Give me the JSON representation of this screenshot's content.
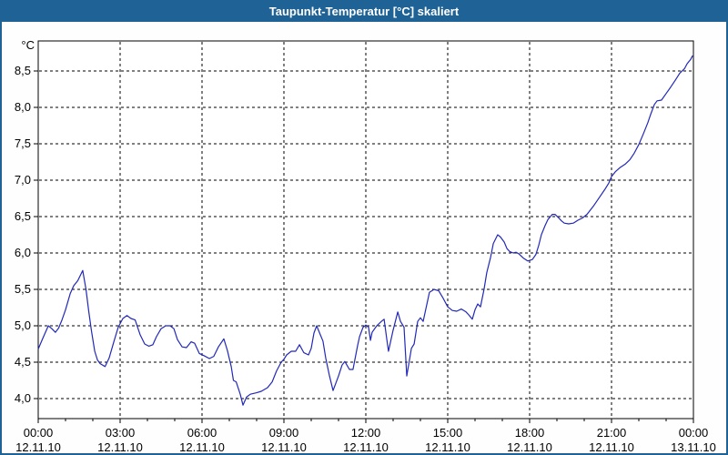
{
  "window": {
    "title": "Taupunkt-Temperatur [°C] skaliert"
  },
  "colors": {
    "titlebar_bg": "#1F6295",
    "titlebar_text": "#FFFFFF",
    "frame_border": "#1F6295",
    "page_bg": "#FDFEFD",
    "plot_bg": "#FFFFFF",
    "grid": "#000000",
    "axis": "#000000",
    "label_text": "#000000",
    "line": "#2228B8"
  },
  "chart_data": {
    "type": "line",
    "title": "Taupunkt-Temperatur [°C] skaliert",
    "grid": "dashed",
    "legend_position": "none",
    "y_axis": {
      "unit_label": "°C",
      "min": 4.0,
      "max": 8.5,
      "step": 0.5,
      "tick_labels": [
        "4,0",
        "4,5",
        "5,0",
        "5,5",
        "6,0",
        "6,5",
        "7,0",
        "7,5",
        "8,0",
        "8,5"
      ]
    },
    "x_axis": {
      "hours_span": 24,
      "major_step_hours": 3,
      "minor_step_hours": 1,
      "ticks": [
        {
          "hour": 0,
          "time": "00:00",
          "date": "12.11.10"
        },
        {
          "hour": 3,
          "time": "03:00",
          "date": "12.11.10"
        },
        {
          "hour": 6,
          "time": "06:00",
          "date": "12.11.10"
        },
        {
          "hour": 9,
          "time": "09:00",
          "date": "12.11.10"
        },
        {
          "hour": 12,
          "time": "12:00",
          "date": "12.11.10"
        },
        {
          "hour": 15,
          "time": "15:00",
          "date": "12.11.10"
        },
        {
          "hour": 18,
          "time": "18:00",
          "date": "12.11.10"
        },
        {
          "hour": 21,
          "time": "21:00",
          "date": "12.11.10"
        },
        {
          "hour": 24,
          "time": "00:00",
          "date": "13.11.10"
        }
      ]
    },
    "series": [
      {
        "name": "Taupunkt-Temperatur",
        "color": "#2228B8",
        "points": [
          [
            0,
            4.68
          ],
          [
            0.17,
            4.83
          ],
          [
            0.37,
            5.0
          ],
          [
            0.5,
            4.96
          ],
          [
            0.63,
            4.91
          ],
          [
            0.75,
            4.97
          ],
          [
            0.87,
            5.08
          ],
          [
            1.0,
            5.22
          ],
          [
            1.17,
            5.44
          ],
          [
            1.3,
            5.55
          ],
          [
            1.45,
            5.62
          ],
          [
            1.63,
            5.76
          ],
          [
            1.75,
            5.5
          ],
          [
            1.85,
            5.2
          ],
          [
            1.95,
            4.93
          ],
          [
            2.07,
            4.65
          ],
          [
            2.17,
            4.53
          ],
          [
            2.27,
            4.48
          ],
          [
            2.45,
            4.44
          ],
          [
            2.6,
            4.56
          ],
          [
            2.77,
            4.78
          ],
          [
            2.93,
            4.98
          ],
          [
            3.1,
            5.1
          ],
          [
            3.25,
            5.14
          ],
          [
            3.4,
            5.1
          ],
          [
            3.55,
            5.08
          ],
          [
            3.73,
            4.88
          ],
          [
            3.9,
            4.75
          ],
          [
            4.05,
            4.72
          ],
          [
            4.2,
            4.74
          ],
          [
            4.33,
            4.85
          ],
          [
            4.5,
            4.96
          ],
          [
            4.67,
            5.0
          ],
          [
            4.83,
            5.0
          ],
          [
            4.97,
            4.96
          ],
          [
            5.1,
            4.81
          ],
          [
            5.27,
            4.71
          ],
          [
            5.43,
            4.7
          ],
          [
            5.6,
            4.78
          ],
          [
            5.73,
            4.76
          ],
          [
            5.9,
            4.62
          ],
          [
            6.07,
            4.59
          ],
          [
            6.27,
            4.55
          ],
          [
            6.43,
            4.58
          ],
          [
            6.6,
            4.71
          ],
          [
            6.8,
            4.82
          ],
          [
            6.93,
            4.66
          ],
          [
            7.07,
            4.44
          ],
          [
            7.15,
            4.25
          ],
          [
            7.25,
            4.23
          ],
          [
            7.4,
            4.06
          ],
          [
            7.5,
            3.91
          ],
          [
            7.63,
            4.02
          ],
          [
            7.77,
            4.06
          ],
          [
            8.0,
            4.08
          ],
          [
            8.17,
            4.1
          ],
          [
            8.4,
            4.15
          ],
          [
            8.57,
            4.23
          ],
          [
            8.73,
            4.38
          ],
          [
            8.9,
            4.5
          ],
          [
            9.0,
            4.54
          ],
          [
            9.1,
            4.6
          ],
          [
            9.27,
            4.65
          ],
          [
            9.43,
            4.65
          ],
          [
            9.57,
            4.74
          ],
          [
            9.73,
            4.63
          ],
          [
            9.9,
            4.6
          ],
          [
            10.0,
            4.69
          ],
          [
            10.1,
            4.9
          ],
          [
            10.2,
            5.0
          ],
          [
            10.33,
            4.88
          ],
          [
            10.43,
            4.79
          ],
          [
            10.53,
            4.56
          ],
          [
            10.67,
            4.31
          ],
          [
            10.8,
            4.11
          ],
          [
            11.0,
            4.31
          ],
          [
            11.13,
            4.46
          ],
          [
            11.23,
            4.51
          ],
          [
            11.4,
            4.4
          ],
          [
            11.53,
            4.4
          ],
          [
            11.7,
            4.73
          ],
          [
            11.77,
            4.85
          ],
          [
            11.9,
            4.98
          ],
          [
            12.0,
            5.01
          ],
          [
            12.1,
            4.98
          ],
          [
            12.17,
            4.8
          ],
          [
            12.23,
            4.91
          ],
          [
            12.4,
            5.0
          ],
          [
            12.57,
            5.06
          ],
          [
            12.67,
            5.09
          ],
          [
            12.77,
            4.81
          ],
          [
            12.83,
            4.65
          ],
          [
            13.0,
            4.94
          ],
          [
            13.17,
            5.19
          ],
          [
            13.27,
            5.06
          ],
          [
            13.4,
            4.98
          ],
          [
            13.5,
            4.31
          ],
          [
            13.67,
            4.69
          ],
          [
            13.77,
            4.75
          ],
          [
            13.9,
            5.06
          ],
          [
            14.0,
            5.11
          ],
          [
            14.1,
            5.06
          ],
          [
            14.33,
            5.46
          ],
          [
            14.5,
            5.5
          ],
          [
            14.67,
            5.48
          ],
          [
            14.83,
            5.38
          ],
          [
            15.0,
            5.26
          ],
          [
            15.17,
            5.21
          ],
          [
            15.33,
            5.2
          ],
          [
            15.5,
            5.23
          ],
          [
            15.67,
            5.19
          ],
          [
            15.77,
            5.15
          ],
          [
            15.9,
            5.09
          ],
          [
            16.0,
            5.22
          ],
          [
            16.1,
            5.3
          ],
          [
            16.2,
            5.26
          ],
          [
            16.33,
            5.5
          ],
          [
            16.43,
            5.73
          ],
          [
            16.57,
            5.94
          ],
          [
            16.67,
            6.13
          ],
          [
            16.83,
            6.25
          ],
          [
            16.93,
            6.22
          ],
          [
            17.07,
            6.15
          ],
          [
            17.17,
            6.06
          ],
          [
            17.27,
            6.02
          ],
          [
            17.4,
            6.0
          ],
          [
            17.5,
            6.01
          ],
          [
            17.6,
            5.99
          ],
          [
            17.77,
            5.93
          ],
          [
            17.93,
            5.89
          ],
          [
            18.1,
            5.91
          ],
          [
            18.23,
            5.98
          ],
          [
            18.33,
            6.1
          ],
          [
            18.43,
            6.25
          ],
          [
            18.57,
            6.38
          ],
          [
            18.67,
            6.46
          ],
          [
            18.83,
            6.53
          ],
          [
            18.93,
            6.53
          ],
          [
            19.07,
            6.48
          ],
          [
            19.17,
            6.44
          ],
          [
            19.27,
            6.41
          ],
          [
            19.43,
            6.4
          ],
          [
            19.6,
            6.41
          ],
          [
            19.77,
            6.45
          ],
          [
            19.93,
            6.48
          ],
          [
            20.1,
            6.53
          ],
          [
            20.33,
            6.64
          ],
          [
            20.55,
            6.76
          ],
          [
            20.75,
            6.87
          ],
          [
            20.9,
            6.96
          ],
          [
            21.0,
            7.05
          ],
          [
            21.15,
            7.12
          ],
          [
            21.3,
            7.17
          ],
          [
            21.5,
            7.22
          ],
          [
            21.67,
            7.28
          ],
          [
            21.83,
            7.37
          ],
          [
            22.0,
            7.49
          ],
          [
            22.17,
            7.64
          ],
          [
            22.33,
            7.79
          ],
          [
            22.43,
            7.9
          ],
          [
            22.57,
            8.04
          ],
          [
            22.67,
            8.09
          ],
          [
            22.83,
            8.1
          ],
          [
            23.0,
            8.19
          ],
          [
            23.17,
            8.28
          ],
          [
            23.33,
            8.37
          ],
          [
            23.5,
            8.47
          ],
          [
            23.67,
            8.53
          ],
          [
            23.77,
            8.6
          ],
          [
            23.9,
            8.66
          ],
          [
            23.97,
            8.71
          ]
        ]
      }
    ]
  }
}
